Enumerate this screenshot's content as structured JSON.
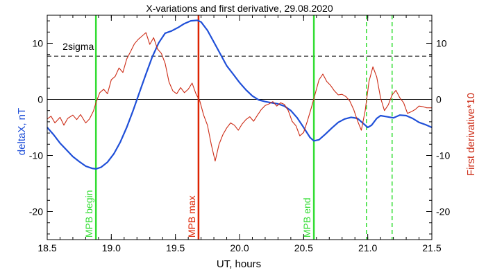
{
  "chart_data": {
    "type": "line",
    "title": "X-variations and first derivative, 29.08.2020",
    "xlabel": "UT, hours",
    "ylabel_left": "deltaX, nT",
    "ylabel_right": "First derivative*10",
    "xlim": [
      18.5,
      21.5
    ],
    "ylim": [
      -25,
      15
    ],
    "x_ticks": [
      18.5,
      19.0,
      19.5,
      20.0,
      20.5,
      21.0,
      21.5
    ],
    "x_tick_labels": [
      "18.5",
      "19.0",
      "19.5",
      "20.0",
      "20.5",
      "21.0",
      "21.5"
    ],
    "y_ticks": [
      -20,
      -10,
      0,
      10
    ],
    "y_tick_labels": [
      "-20",
      "-10",
      "0",
      "10"
    ],
    "grid": false,
    "colors": {
      "deltaX": "#1f4fd8",
      "derivative": "#cc2a14",
      "mpb_green": "#33dd33",
      "mpb_red": "#dd2200",
      "axis": "#000000"
    },
    "threshold": {
      "label": "2sigma",
      "value": 7.7,
      "style": "dashed"
    },
    "zero_line": 0,
    "vertical_markers": [
      {
        "x": 18.88,
        "label": "MPB begin",
        "color": "#33dd33",
        "style": "solid"
      },
      {
        "x": 19.68,
        "label": "MPB max",
        "color": "#dd2200",
        "style": "solid"
      },
      {
        "x": 20.58,
        "label": "MPB end",
        "color": "#33dd33",
        "style": "solid"
      },
      {
        "x": 20.99,
        "label": "",
        "color": "#33dd33",
        "style": "dashed"
      },
      {
        "x": 21.19,
        "label": "",
        "color": "#33dd33",
        "style": "dashed"
      }
    ],
    "series": [
      {
        "axis": "left",
        "color": "#1f4fd8",
        "x": [
          18.5,
          18.55,
          18.6,
          18.65,
          18.7,
          18.75,
          18.8,
          18.85,
          18.88,
          18.92,
          18.97,
          19.02,
          19.07,
          19.12,
          19.17,
          19.22,
          19.27,
          19.32,
          19.37,
          19.42,
          19.47,
          19.52,
          19.57,
          19.62,
          19.67,
          19.7,
          19.75,
          19.8,
          19.85,
          19.9,
          19.95,
          20.0,
          20.05,
          20.1,
          20.15,
          20.2,
          20.25,
          20.3,
          20.35,
          20.4,
          20.45,
          20.5,
          20.55,
          20.58,
          20.62,
          20.67,
          20.72,
          20.77,
          20.82,
          20.87,
          20.92,
          20.97,
          21.0,
          21.03,
          21.07,
          21.1,
          21.15,
          21.2,
          21.25,
          21.3,
          21.35,
          21.4,
          21.45,
          21.5
        ],
        "y": [
          -5.0,
          -6.3,
          -7.8,
          -9.0,
          -10.2,
          -11.1,
          -11.9,
          -12.3,
          -12.4,
          -12.1,
          -11.2,
          -9.7,
          -7.6,
          -5.0,
          -2.0,
          1.3,
          4.5,
          7.6,
          10.1,
          11.8,
          12.2,
          12.8,
          13.5,
          14.0,
          14.1,
          13.8,
          12.3,
          10.2,
          8.1,
          6.0,
          4.5,
          3.0,
          1.7,
          0.6,
          -0.1,
          -0.4,
          -0.6,
          -0.8,
          -1.2,
          -2.0,
          -3.3,
          -5.0,
          -6.8,
          -7.4,
          -7.2,
          -6.2,
          -5.1,
          -4.1,
          -3.5,
          -3.2,
          -3.4,
          -4.4,
          -5.0,
          -4.6,
          -3.4,
          -2.9,
          -3.1,
          -3.3,
          -2.8,
          -2.9,
          -3.4,
          -4.1,
          -4.5,
          -5.0
        ]
      },
      {
        "axis": "right",
        "color": "#cc2a14",
        "x": [
          18.5,
          18.53,
          18.56,
          18.6,
          18.63,
          18.66,
          18.7,
          18.73,
          18.76,
          18.8,
          18.83,
          18.86,
          18.88,
          18.91,
          18.94,
          18.97,
          19.0,
          19.03,
          19.06,
          19.09,
          19.12,
          19.15,
          19.18,
          19.21,
          19.24,
          19.27,
          19.3,
          19.33,
          19.36,
          19.39,
          19.42,
          19.45,
          19.48,
          19.51,
          19.54,
          19.57,
          19.6,
          19.63,
          19.66,
          19.69,
          19.72,
          19.75,
          19.78,
          19.81,
          19.84,
          19.87,
          19.9,
          19.93,
          19.96,
          19.99,
          20.02,
          20.05,
          20.08,
          20.11,
          20.14,
          20.17,
          20.2,
          20.23,
          20.26,
          20.29,
          20.32,
          20.35,
          20.38,
          20.41,
          20.44,
          20.47,
          20.5,
          20.53,
          20.56,
          20.59,
          20.62,
          20.65,
          20.68,
          20.71,
          20.74,
          20.77,
          20.8,
          20.83,
          20.86,
          20.89,
          20.92,
          20.95,
          20.98,
          21.01,
          21.04,
          21.07,
          21.1,
          21.13,
          21.16,
          21.19,
          21.22,
          21.25,
          21.28,
          21.31,
          21.34,
          21.37,
          21.4,
          21.43,
          21.46,
          21.5
        ],
        "y": [
          -3.5,
          -3.0,
          -4.2,
          -3.2,
          -4.6,
          -3.4,
          -2.8,
          -3.6,
          -2.7,
          -4.2,
          -3.5,
          -2.1,
          -0.6,
          1.2,
          1.8,
          1.0,
          3.5,
          4.1,
          5.6,
          4.8,
          7.2,
          8.5,
          9.9,
          10.7,
          11.3,
          11.9,
          9.8,
          11.0,
          9.0,
          8.2,
          6.4,
          3.1,
          1.5,
          1.0,
          2.1,
          1.2,
          1.8,
          2.9,
          1.0,
          -0.3,
          -2.8,
          -4.6,
          -8.1,
          -11.0,
          -8.0,
          -6.3,
          -5.1,
          -4.2,
          -4.6,
          -5.5,
          -4.4,
          -3.6,
          -3.1,
          -3.9,
          -2.8,
          -1.8,
          -1.1,
          -0.8,
          -0.4,
          -1.2,
          -0.6,
          -0.9,
          -2.0,
          -3.9,
          -4.7,
          -6.5,
          -5.9,
          -3.8,
          -1.5,
          1.0,
          3.5,
          4.5,
          3.2,
          2.5,
          1.5,
          0.8,
          0.9,
          0.5,
          -0.3,
          -1.8,
          -3.8,
          -5.5,
          -2.0,
          3.2,
          5.8,
          4.0,
          0.3,
          -2.0,
          -1.0,
          0.8,
          1.6,
          0.3,
          -0.6,
          -2.5,
          -2.2,
          -1.8,
          -1.2,
          -1.3,
          -1.5,
          -1.5
        ]
      }
    ]
  }
}
